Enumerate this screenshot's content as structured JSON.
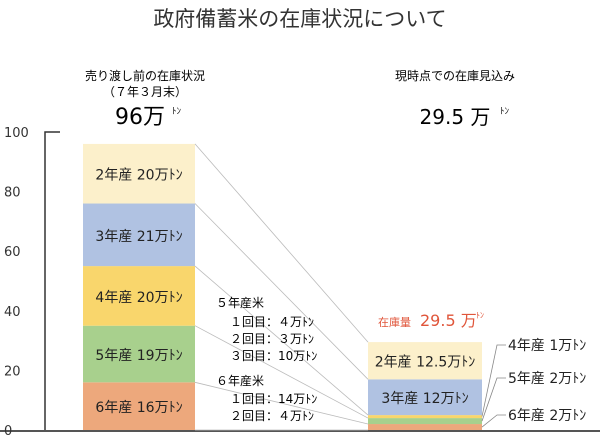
{
  "title": "政府備蓄米の在庫状況について",
  "left_header": {
    "line1": "売り渡し前の在庫状況",
    "line2": "（７年３月末）",
    "total": "96万",
    "unit": "ﾄﾝ"
  },
  "right_header": {
    "line1": "現時点での在庫見込み",
    "total": "29.5 万",
    "unit": "ﾄﾝ"
  },
  "stock_label": {
    "prefix": "在庫量",
    "value": "29.5 万",
    "unit": "ﾄﾝ"
  },
  "release_notes": {
    "y5": {
      "title": "５年産米",
      "lines": [
        "１回目：４万ﾄﾝ",
        "２回目：３万ﾄﾝ",
        "３回目：10万ﾄﾝ"
      ]
    },
    "y6": {
      "title": "６年産米",
      "lines": [
        "１回目：14万ﾄﾝ",
        "２回目：４万ﾄﾝ"
      ]
    }
  },
  "chart_data": {
    "type": "bar",
    "stacked": true,
    "categories": [
      "売り渡し前の在庫状況（７年３月末）",
      "現時点での在庫見込み"
    ],
    "ylim": [
      0,
      100
    ],
    "yticks": [
      0,
      20,
      40,
      60,
      80,
      100
    ],
    "series": [
      {
        "name": "6年産",
        "color": "#eda87c",
        "values": [
          16,
          2
        ],
        "labels": [
          "6年産 16万ﾄﾝ",
          "6年産 2万ﾄﾝ"
        ]
      },
      {
        "name": "5年産",
        "color": "#a8d08d",
        "values": [
          19,
          2
        ],
        "labels": [
          "5年産 19万ﾄﾝ",
          "5年産 2万ﾄﾝ"
        ]
      },
      {
        "name": "4年産",
        "color": "#f9d66c",
        "values": [
          20,
          1
        ],
        "labels": [
          "4年産 20万ﾄﾝ",
          "4年産 1万ﾄﾝ"
        ]
      },
      {
        "name": "3年産",
        "color": "#b0c2e2",
        "values": [
          21,
          12
        ],
        "labels": [
          "3年産 21万ﾄﾝ",
          "3年産 12万ﾄﾝ"
        ]
      },
      {
        "name": "2年産",
        "color": "#fcf0cb",
        "values": [
          20,
          12.5
        ],
        "labels": [
          "2年産 20万ﾄﾝ",
          "2年産 12.5万ﾄﾝ"
        ]
      }
    ],
    "accent_color": "#e0553a"
  }
}
